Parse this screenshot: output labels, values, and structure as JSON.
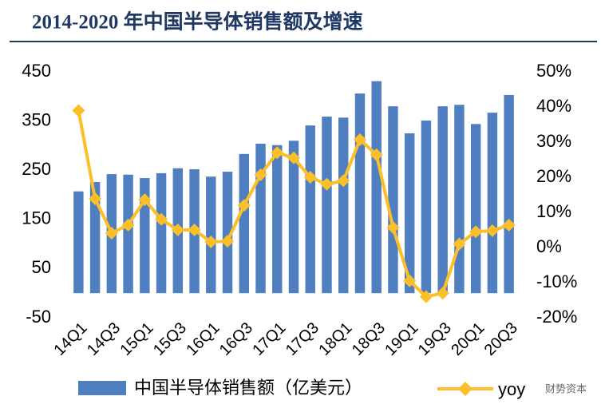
{
  "chart_data": {
    "type": "bar-line",
    "title": "2014-2020 年中国半导体销售额及增速",
    "categories": [
      "14Q1",
      null,
      "14Q3",
      null,
      "15Q1",
      null,
      "15Q3",
      null,
      "16Q1",
      null,
      "16Q3",
      null,
      "17Q1",
      null,
      "17Q3",
      null,
      "18Q1",
      null,
      "18Q3",
      null,
      "19Q1",
      null,
      "19Q3",
      null,
      "20Q1",
      null,
      "20Q3"
    ],
    "series": [
      {
        "name": "中国半导体销售额（亿美元）",
        "type": "bar",
        "color": "#4f7fc0",
        "values": [
          207,
          226,
          242,
          241,
          234,
          244,
          254,
          252,
          237,
          247,
          283,
          304,
          301,
          310,
          341,
          359,
          357,
          406,
          431,
          380,
          325,
          351,
          380,
          383,
          344,
          367,
          403
        ]
      },
      {
        "name": "yoy",
        "type": "line",
        "axis": "y2",
        "color": "#fbbf2a",
        "values": [
          39,
          13.9,
          4.1,
          6.4,
          13.6,
          8,
          5,
          5,
          1.6,
          1.8,
          12,
          20.7,
          27,
          25.5,
          20,
          18,
          19,
          30.7,
          26.4,
          5.7,
          -9.5,
          -14,
          -13,
          1,
          4.5,
          4.8,
          6.4
        ]
      }
    ],
    "ylim": [
      -50,
      450
    ],
    "yticks": [
      -50,
      50,
      150,
      250,
      350,
      450
    ],
    "y2lim": [
      -20,
      50
    ],
    "y2ticks": [
      {
        "value": -20,
        "label": "-20%"
      },
      {
        "value": -10,
        "label": "-10%"
      },
      {
        "value": 0,
        "label": "0%"
      },
      {
        "value": 10,
        "label": "10%"
      },
      {
        "value": 20,
        "label": "20%"
      },
      {
        "value": 30,
        "label": "30%"
      },
      {
        "value": 40,
        "label": "40%"
      },
      {
        "value": 50,
        "label": "50%"
      }
    ],
    "watermark": "财势资本"
  }
}
